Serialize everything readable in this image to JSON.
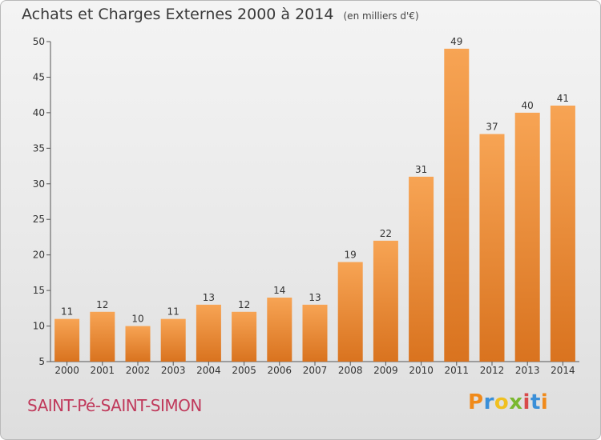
{
  "header": {
    "title": "Achats et Charges Externes 2000 à 2014",
    "unit": "(en milliers d'€)"
  },
  "footer": {
    "location": "SAINT-Pé-SAINT-SIMON",
    "logo": [
      "P",
      "r",
      "o",
      "x",
      "i",
      "t",
      "i"
    ],
    "logo_colors": [
      "#f08a1a",
      "#3a8fd8",
      "#f0c020",
      "#7ab830",
      "#d84a4a",
      "#3a8fd8",
      "#f08a1a"
    ]
  },
  "colors": {
    "bar_light": "#f7a454",
    "bar_dark": "#d9731f",
    "label": "#333333",
    "location": "#c0395b"
  },
  "chart_data": {
    "type": "bar",
    "title": "Achats et Charges Externes 2000 à 2014",
    "subtitle": "(en milliers d'€)",
    "categories": [
      "2000",
      "2001",
      "2002",
      "2003",
      "2004",
      "2005",
      "2006",
      "2007",
      "2008",
      "2009",
      "2010",
      "2011",
      "2012",
      "2013",
      "2014"
    ],
    "values": [
      11,
      12,
      10,
      11,
      13,
      12,
      14,
      13,
      19,
      22,
      31,
      49,
      37,
      40,
      41
    ],
    "ylim": [
      5,
      50
    ],
    "yticks": [
      5,
      10,
      15,
      20,
      25,
      30,
      35,
      40,
      45,
      50
    ],
    "grid": false,
    "data_labels": true
  }
}
